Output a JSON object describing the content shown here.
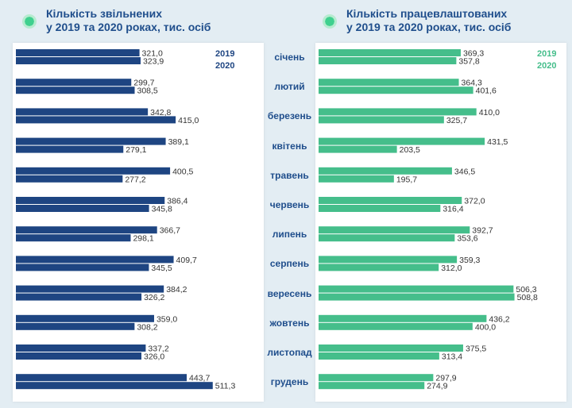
{
  "charts": [
    {
      "title_line1": "Кількість звільнених",
      "title_line2": "у 2019 та 2020 роках, тис. осіб"
    },
    {
      "title_line1": "Кількість працевлаштованих",
      "title_line2": "у 2019 та 2020 роках, тис. осіб"
    }
  ],
  "months": [
    "січень",
    "лютий",
    "березень",
    "квітень",
    "травень",
    "червень",
    "липень",
    "серпень",
    "вересень",
    "жовтень",
    "листопад",
    "грудень"
  ],
  "legend": [
    "2019",
    "2020"
  ],
  "colors": {
    "dismissed": "#1e4582",
    "employed": "#45be8b",
    "title": "#1f4e8c",
    "background": "#e3edf3"
  },
  "chart_data": [
    {
      "type": "bar",
      "orientation": "horizontal",
      "categories": [
        "січень",
        "лютий",
        "березень",
        "квітень",
        "травень",
        "червень",
        "липень",
        "серпень",
        "вересень",
        "жовтень",
        "листопад",
        "грудень"
      ],
      "series": [
        {
          "name": "2019",
          "values": [
            321.0,
            299.7,
            342.8,
            389.1,
            400.5,
            386.4,
            366.7,
            409.7,
            384.2,
            359.0,
            337.2,
            443.7
          ],
          "labels": [
            "321,0",
            "299,7",
            "342,8",
            "389,1",
            "400,5",
            "386,4",
            "366,7",
            "409,7",
            "384,2",
            "359,0",
            "337,2",
            "443,7"
          ]
        },
        {
          "name": "2020",
          "values": [
            323.9,
            308.5,
            415.0,
            279.1,
            277.2,
            345.8,
            298.1,
            345.5,
            326.2,
            308.2,
            326.0,
            511.3
          ],
          "labels": [
            "323,9",
            "308,5",
            "415,0",
            "279,1",
            "277,2",
            "345,8",
            "298,1",
            "345,5",
            "326,2",
            "308,2",
            "326,0",
            "511,3"
          ]
        }
      ],
      "title": "Кількість звільнених у 2019 та 2020 роках, тис. осіб",
      "legend_position": "top-right",
      "bars_grow": "left-to-right"
    },
    {
      "type": "bar",
      "orientation": "horizontal",
      "categories": [
        "січень",
        "лютий",
        "березень",
        "квітень",
        "травень",
        "червень",
        "липень",
        "серпень",
        "вересень",
        "жовтень",
        "листопад",
        "грудень"
      ],
      "series": [
        {
          "name": "2019",
          "values": [
            369.3,
            364.3,
            410.0,
            431.5,
            346.5,
            372.0,
            392.7,
            359.3,
            506.3,
            436.2,
            375.5,
            297.9
          ],
          "labels": [
            "369,3",
            "364,3",
            "410,0",
            "431,5",
            "346,5",
            "372,0",
            "392,7",
            "359,3",
            "506,3",
            "436,2",
            "375,5",
            "297,9"
          ]
        },
        {
          "name": "2020",
          "values": [
            357.8,
            401.6,
            325.7,
            203.5,
            195.7,
            316.4,
            353.6,
            312.0,
            508.8,
            400.0,
            313.4,
            274.9
          ],
          "labels": [
            "357,8",
            "401,6",
            "325,7",
            "203,5",
            "195,7",
            "316,4",
            "353,6",
            "312,0",
            "508,8",
            "400,0",
            "313,4",
            "274,9"
          ]
        }
      ],
      "title": "Кількість працевлаштованих у 2019 та 2020 роках, тис. осіб",
      "legend_position": "top-right",
      "bars_grow": "left-to-right"
    }
  ]
}
